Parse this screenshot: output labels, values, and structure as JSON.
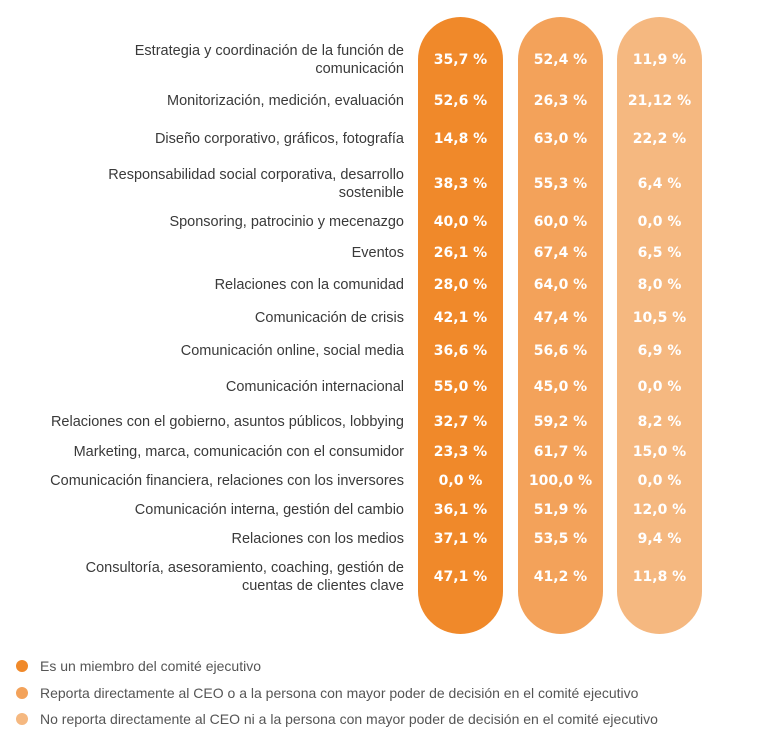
{
  "chart_data": {
    "type": "table",
    "colors": [
      "#F0892A",
      "#F3A25A",
      "#F5B880"
    ],
    "series": [
      {
        "name": "Es un miembro del comité ejecutivo"
      },
      {
        "name": "Reporta directamente al CEO o a la persona con mayor poder de decisión en el comité ejecutivo"
      },
      {
        "name": "No reporta directamente al CEO ni a la persona con mayor poder de decisión en el comité ejecutivo"
      }
    ],
    "rows": [
      {
        "label": "Estrategia y coordinación de la función de comunicación",
        "values": [
          "35,7 %",
          "52,4 %",
          "11,9 %"
        ]
      },
      {
        "label": "Monitorización, medición, evaluación",
        "values": [
          "52,6 %",
          "26,3 %",
          "21,12 %"
        ]
      },
      {
        "label": "Diseño corporativo, gráficos, fotografía",
        "values": [
          "14,8 %",
          "63,0 %",
          "22,2 %"
        ]
      },
      {
        "label": "Responsabilidad social corporativa, desarrollo sostenible",
        "values": [
          "38,3 %",
          "55,3 %",
          "6,4 %"
        ]
      },
      {
        "label": "Sponsoring, patrocinio y mecenazgo",
        "values": [
          "40,0 %",
          "60,0 %",
          "0,0 %"
        ]
      },
      {
        "label": "Eventos",
        "values": [
          "26,1 %",
          "67,4 %",
          "6,5 %"
        ]
      },
      {
        "label": "Relaciones con la comunidad",
        "values": [
          "28,0 %",
          "64,0 %",
          "8,0 %"
        ]
      },
      {
        "label": "Comunicación de crisis",
        "values": [
          "42,1 %",
          "47,4 %",
          "10,5 %"
        ]
      },
      {
        "label": "Comunicación online, social media",
        "values": [
          "36,6 %",
          "56,6 %",
          "6,9 %"
        ]
      },
      {
        "label": "Comunicación internacional",
        "values": [
          "55,0 %",
          "45,0 %",
          "0,0 %"
        ]
      },
      {
        "label": "Relaciones con el gobierno, asuntos públicos, lobbying",
        "values": [
          "32,7 %",
          "59,2 %",
          "8,2 %"
        ]
      },
      {
        "label": "Marketing, marca, comunicación con el consumidor",
        "values": [
          "23,3 %",
          "61,7 %",
          "15,0 %"
        ]
      },
      {
        "label": "Comunicación financiera, relaciones con los inversores",
        "values": [
          "0,0 %",
          "100,0 %",
          "0,0 %"
        ]
      },
      {
        "label": "Comunicación interna, gestión del cambio",
        "values": [
          "36,1 %",
          "51,9 %",
          "12,0 %"
        ]
      },
      {
        "label": "Relaciones con los medios",
        "values": [
          "37,1 %",
          "53,5 %",
          "9,4 %"
        ]
      },
      {
        "label": "Consultoría, asesoramiento, coaching, gestión de cuentas de clientes clave",
        "values": [
          "47,1 %",
          "41,2 %",
          "11,8 %"
        ]
      }
    ]
  }
}
